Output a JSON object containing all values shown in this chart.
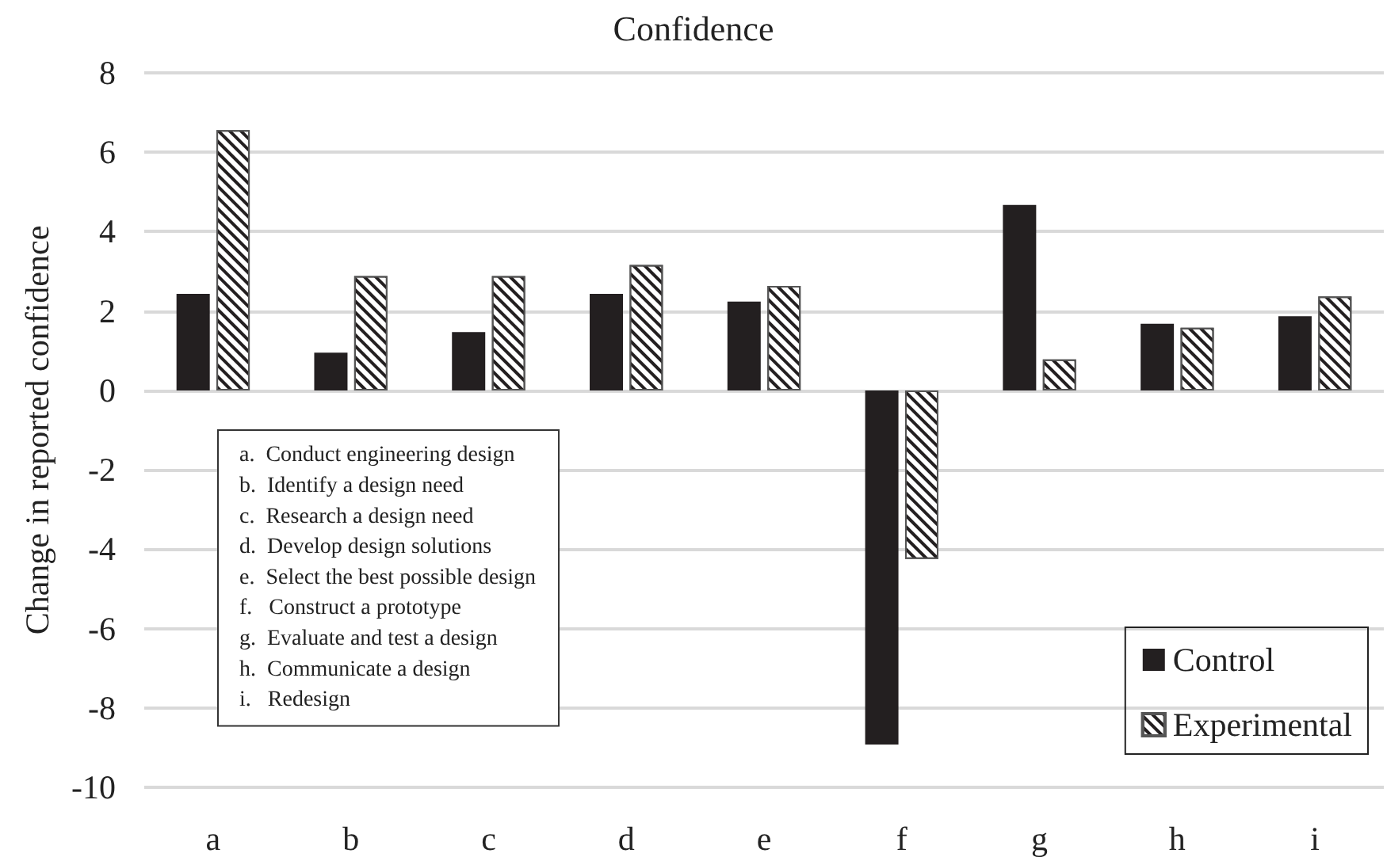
{
  "chart_data": {
    "type": "bar",
    "title": "Confidence",
    "ylabel": "Change in reported confidence",
    "categories": [
      "a",
      "b",
      "c",
      "d",
      "e",
      "f",
      "g",
      "h",
      "i"
    ],
    "series": [
      {
        "name": "Control",
        "color": "#231f20",
        "values": [
          2.43,
          0.95,
          1.47,
          2.43,
          2.24,
          -8.92,
          4.67,
          1.68,
          1.87
        ]
      },
      {
        "name": "Experimental",
        "color": "#ffffff",
        "values": [
          6.56,
          2.88,
          2.88,
          3.16,
          2.63,
          -4.25,
          0.78,
          1.58,
          2.37
        ]
      }
    ],
    "ylim": [
      -10,
      8
    ],
    "yticks": [
      -10,
      -8,
      -6,
      -4,
      -2,
      0,
      2,
      4,
      6,
      8
    ],
    "grid": "y",
    "legend": "bottom right",
    "annotations": [
      "a.  Conduct engineering design",
      "b.  Identify a design need",
      "c.  Research a design need",
      "d.  Develop design solutions",
      "e.  Select the best possible design",
      "f.   Construct a prototype",
      "g.  Evaluate and test a design",
      "h.  Communicate a design",
      "i.   Redesign"
    ]
  }
}
